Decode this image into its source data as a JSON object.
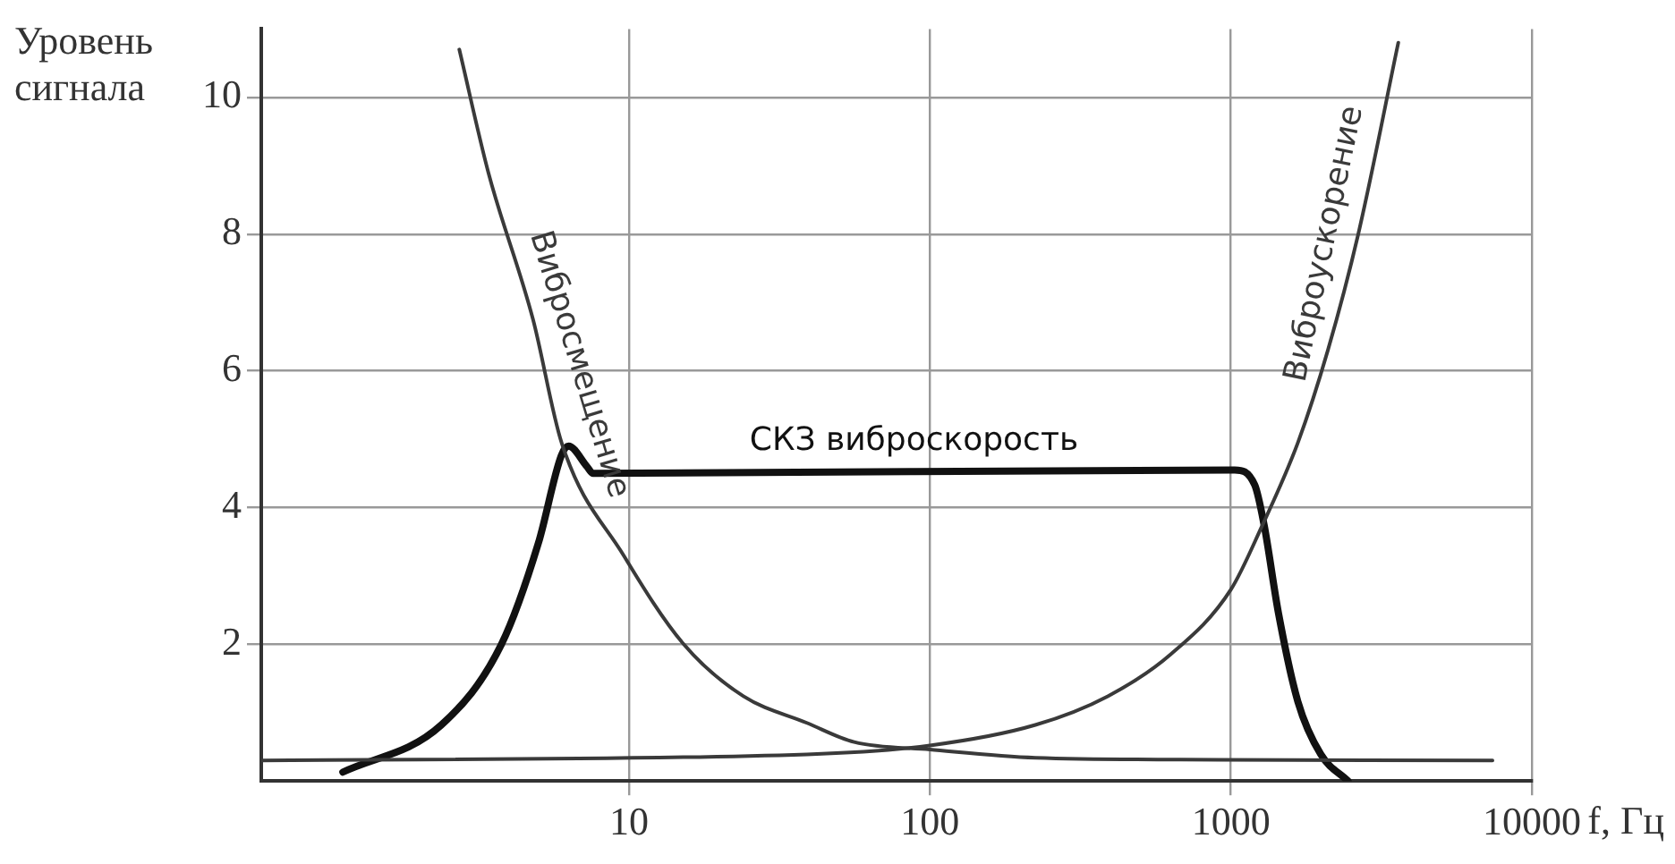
{
  "chart_data": {
    "type": "line",
    "xlabel": "f, Гц",
    "ylabel": "Уровень сигнала",
    "log": "x",
    "xlim": [
      0.6,
      10000
    ],
    "xticks": [
      10,
      100,
      1000,
      10000
    ],
    "ylim": [
      0,
      11
    ],
    "yticks": [
      2,
      4,
      6,
      8,
      10
    ],
    "grid": true,
    "legend": false,
    "marker": "none",
    "line_style": "solid",
    "series": [
      {
        "name": "Вибросмещение",
        "color": "#3a3a3a",
        "x": [
          2.73,
          3.41,
          4.8,
          5.97,
          9.6,
          15.2,
          24,
          39,
          56,
          100,
          224,
          910,
          7400
        ],
        "values": [
          10.7,
          8.9,
          6.75,
          4.95,
          3.3,
          2.0,
          1.24,
          0.85,
          0.57,
          0.46,
          0.34,
          0.31,
          0.3
        ]
      },
      {
        "name": "Виброускорение",
        "color": "#3a3a3a",
        "x": [
          0.6,
          39,
          100,
          224,
          390,
          630,
          1000,
          1260,
          1670,
          2100,
          2650,
          3600
        ],
        "values": [
          0.3,
          0.39,
          0.52,
          0.82,
          1.24,
          1.85,
          2.8,
          3.7,
          4.95,
          6.3,
          8.0,
          10.8
        ]
      },
      {
        "name": "СКЗ виброскорость",
        "color": "#111111",
        "x": [
          1.12,
          2.38,
          3.77,
          5.0,
          5.97,
          6.3,
          7.25,
          7.6,
          1030,
          1200,
          1290,
          1440,
          1670,
          1990,
          2450
        ],
        "values": [
          0.13,
          0.82,
          2.0,
          3.48,
          4.77,
          4.9,
          4.6,
          4.5,
          4.55,
          4.33,
          3.74,
          2.45,
          1.16,
          0.39,
          0
        ]
      }
    ]
  }
}
